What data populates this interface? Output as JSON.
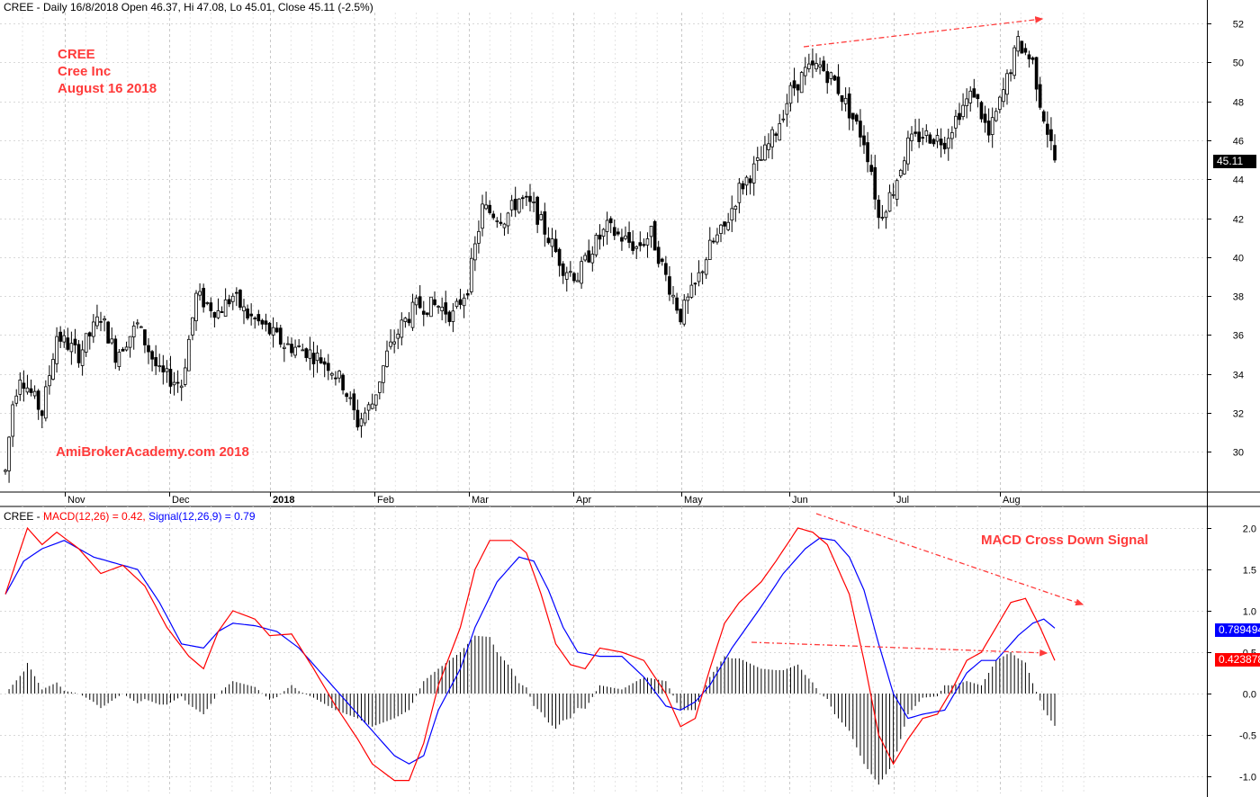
{
  "header": {
    "price": "CREE - Daily 16/8/2018 Open 46.37, Hi 47.08, Lo 45.01, Close 45.11 (-2.5%)",
    "macd_prefix": "CREE - ",
    "macd_part": "MACD(12,26) = 0.42, ",
    "signal_part": "Signal(12,26,9) = 0.79"
  },
  "annotations": {
    "ticker": "CREE",
    "company": "Cree Inc",
    "date": "August 16 2018",
    "watermark": "AmiBrokerAcademy.com  2018",
    "macd_signal": "MACD Cross Down Signal"
  },
  "tags": {
    "last_price": "45.11",
    "signal_value": "0.789494",
    "macd_value": "0.423878"
  },
  "colors": {
    "macd": "#ff0000",
    "signal": "#0000ff",
    "annotation": "#ff3b3b",
    "price_tag": "#000000"
  },
  "chart_data": [
    {
      "type": "candlestick",
      "xlabel": "",
      "ylabel": "",
      "x_ticks": [
        "Nov",
        "Dec",
        "2018",
        "Feb",
        "Mar",
        "Apr",
        "May",
        "Jun",
        "Jul",
        "Aug"
      ],
      "ylim": [
        28,
        53
      ],
      "y_ticks": [
        30,
        32,
        34,
        36,
        38,
        40,
        42,
        44,
        46,
        48,
        50,
        52
      ],
      "grid": true,
      "anchors": [
        [
          0,
          29
        ],
        [
          2,
          32.5
        ],
        [
          4,
          34
        ],
        [
          10,
          32
        ],
        [
          14,
          36
        ],
        [
          20,
          35
        ],
        [
          26,
          37
        ],
        [
          30,
          35
        ],
        [
          36,
          36.5
        ],
        [
          42,
          34
        ],
        [
          48,
          33.5
        ],
        [
          52,
          38
        ],
        [
          58,
          37.2
        ],
        [
          62,
          38
        ],
        [
          66,
          37
        ],
        [
          70,
          36.5
        ],
        [
          76,
          35.5
        ],
        [
          82,
          35.2
        ],
        [
          88,
          34.5
        ],
        [
          92,
          33.5
        ],
        [
          96,
          31.5
        ],
        [
          100,
          32.5
        ],
        [
          104,
          35
        ],
        [
          108,
          36.5
        ],
        [
          112,
          37.5
        ],
        [
          118,
          37.5
        ],
        [
          122,
          37
        ],
        [
          126,
          38.5
        ],
        [
          130,
          42.5
        ],
        [
          136,
          42
        ],
        [
          140,
          43
        ],
        [
          144,
          42.5
        ],
        [
          148,
          41
        ],
        [
          152,
          39.5
        ],
        [
          156,
          39
        ],
        [
          160,
          40.5
        ],
        [
          164,
          41.5
        ],
        [
          168,
          41
        ],
        [
          172,
          40.5
        ],
        [
          176,
          41.2
        ],
        [
          180,
          39
        ],
        [
          184,
          37
        ],
        [
          188,
          38.5
        ],
        [
          192,
          40.5
        ],
        [
          196,
          41.5
        ],
        [
          200,
          43.5
        ],
        [
          206,
          45
        ],
        [
          210,
          46.5
        ],
        [
          214,
          48.5
        ],
        [
          218,
          49.5
        ],
        [
          222,
          49.8
        ],
        [
          226,
          49
        ],
        [
          230,
          47.5
        ],
        [
          234,
          46
        ],
        [
          236,
          44.5
        ],
        [
          238,
          42
        ],
        [
          242,
          43.5
        ],
        [
          246,
          45.8
        ],
        [
          250,
          46.3
        ],
        [
          256,
          46
        ],
        [
          260,
          47.5
        ],
        [
          264,
          48.5
        ],
        [
          268,
          46.2
        ],
        [
          272,
          48.5
        ],
        [
          276,
          51
        ],
        [
          280,
          50
        ],
        [
          282,
          48
        ],
        [
          286,
          45
        ]
      ],
      "title": ""
    },
    {
      "type": "line",
      "ylim": [
        -1.1,
        2.15
      ],
      "y_ticks": [
        -1.0,
        -0.5,
        0.0,
        0.5,
        1.0,
        1.5,
        2.0
      ],
      "grid": true,
      "series": [
        {
          "name": "MACD(12,26)",
          "color": "#ff0000",
          "keyframes": [
            [
              0,
              1.2
            ],
            [
              6,
              2.0
            ],
            [
              10,
              1.8
            ],
            [
              14,
              1.95
            ],
            [
              20,
              1.75
            ],
            [
              26,
              1.45
            ],
            [
              32,
              1.55
            ],
            [
              38,
              1.3
            ],
            [
              44,
              0.8
            ],
            [
              50,
              0.45
            ],
            [
              54,
              0.3
            ],
            [
              58,
              0.75
            ],
            [
              62,
              1.0
            ],
            [
              68,
              0.9
            ],
            [
              72,
              0.7
            ],
            [
              78,
              0.72
            ],
            [
              84,
              0.3
            ],
            [
              90,
              -0.15
            ],
            [
              96,
              -0.55
            ],
            [
              100,
              -0.85
            ],
            [
              106,
              -1.05
            ],
            [
              110,
              -1.05
            ],
            [
              114,
              -0.6
            ],
            [
              118,
              0.1
            ],
            [
              124,
              0.8
            ],
            [
              128,
              1.5
            ],
            [
              132,
              1.85
            ],
            [
              138,
              1.85
            ],
            [
              142,
              1.7
            ],
            [
              146,
              1.2
            ],
            [
              150,
              0.6
            ],
            [
              154,
              0.35
            ],
            [
              158,
              0.3
            ],
            [
              162,
              0.55
            ],
            [
              168,
              0.5
            ],
            [
              174,
              0.4
            ],
            [
              180,
              0.0
            ],
            [
              184,
              -0.4
            ],
            [
              188,
              -0.3
            ],
            [
              192,
              0.3
            ],
            [
              196,
              0.85
            ],
            [
              200,
              1.1
            ],
            [
              206,
              1.35
            ],
            [
              210,
              1.6
            ],
            [
              216,
              2.0
            ],
            [
              220,
              1.95
            ],
            [
              224,
              1.8
            ],
            [
              230,
              1.2
            ],
            [
              234,
              0.4
            ],
            [
              238,
              -0.5
            ],
            [
              242,
              -0.85
            ],
            [
              246,
              -0.55
            ],
            [
              250,
              -0.3
            ],
            [
              254,
              -0.25
            ],
            [
              258,
              0.05
            ],
            [
              262,
              0.4
            ],
            [
              266,
              0.5
            ],
            [
              270,
              0.8
            ],
            [
              274,
              1.1
            ],
            [
              278,
              1.15
            ],
            [
              282,
              0.8
            ],
            [
              286,
              0.4
            ]
          ]
        },
        {
          "name": "Signal(12,26,9)",
          "color": "#0000ff",
          "keyframes": [
            [
              0,
              1.2
            ],
            [
              5,
              1.6
            ],
            [
              10,
              1.75
            ],
            [
              16,
              1.85
            ],
            [
              24,
              1.65
            ],
            [
              32,
              1.55
            ],
            [
              36,
              1.5
            ],
            [
              42,
              1.1
            ],
            [
              48,
              0.6
            ],
            [
              54,
              0.55
            ],
            [
              58,
              0.75
            ],
            [
              62,
              0.85
            ],
            [
              68,
              0.82
            ],
            [
              74,
              0.75
            ],
            [
              80,
              0.55
            ],
            [
              86,
              0.25
            ],
            [
              92,
              -0.05
            ],
            [
              100,
              -0.45
            ],
            [
              106,
              -0.75
            ],
            [
              110,
              -0.85
            ],
            [
              114,
              -0.75
            ],
            [
              118,
              -0.2
            ],
            [
              124,
              0.3
            ],
            [
              128,
              0.8
            ],
            [
              134,
              1.35
            ],
            [
              140,
              1.65
            ],
            [
              144,
              1.6
            ],
            [
              148,
              1.25
            ],
            [
              152,
              0.8
            ],
            [
              156,
              0.5
            ],
            [
              162,
              0.45
            ],
            [
              168,
              0.45
            ],
            [
              174,
              0.2
            ],
            [
              180,
              -0.15
            ],
            [
              184,
              -0.2
            ],
            [
              188,
              -0.1
            ],
            [
              192,
              0.1
            ],
            [
              198,
              0.55
            ],
            [
              206,
              1.05
            ],
            [
              212,
              1.45
            ],
            [
              218,
              1.75
            ],
            [
              222,
              1.88
            ],
            [
              226,
              1.85
            ],
            [
              230,
              1.65
            ],
            [
              234,
              1.25
            ],
            [
              238,
              0.6
            ],
            [
              242,
              0.0
            ],
            [
              246,
              -0.3
            ],
            [
              250,
              -0.25
            ],
            [
              256,
              -0.2
            ],
            [
              262,
              0.25
            ],
            [
              266,
              0.4
            ],
            [
              270,
              0.4
            ],
            [
              276,
              0.7
            ],
            [
              280,
              0.85
            ],
            [
              283,
              0.9
            ],
            [
              286,
              0.79
            ]
          ]
        },
        {
          "name": "Histogram",
          "color": "#000000",
          "derived": "MACD - Signal"
        }
      ],
      "title": ""
    }
  ]
}
